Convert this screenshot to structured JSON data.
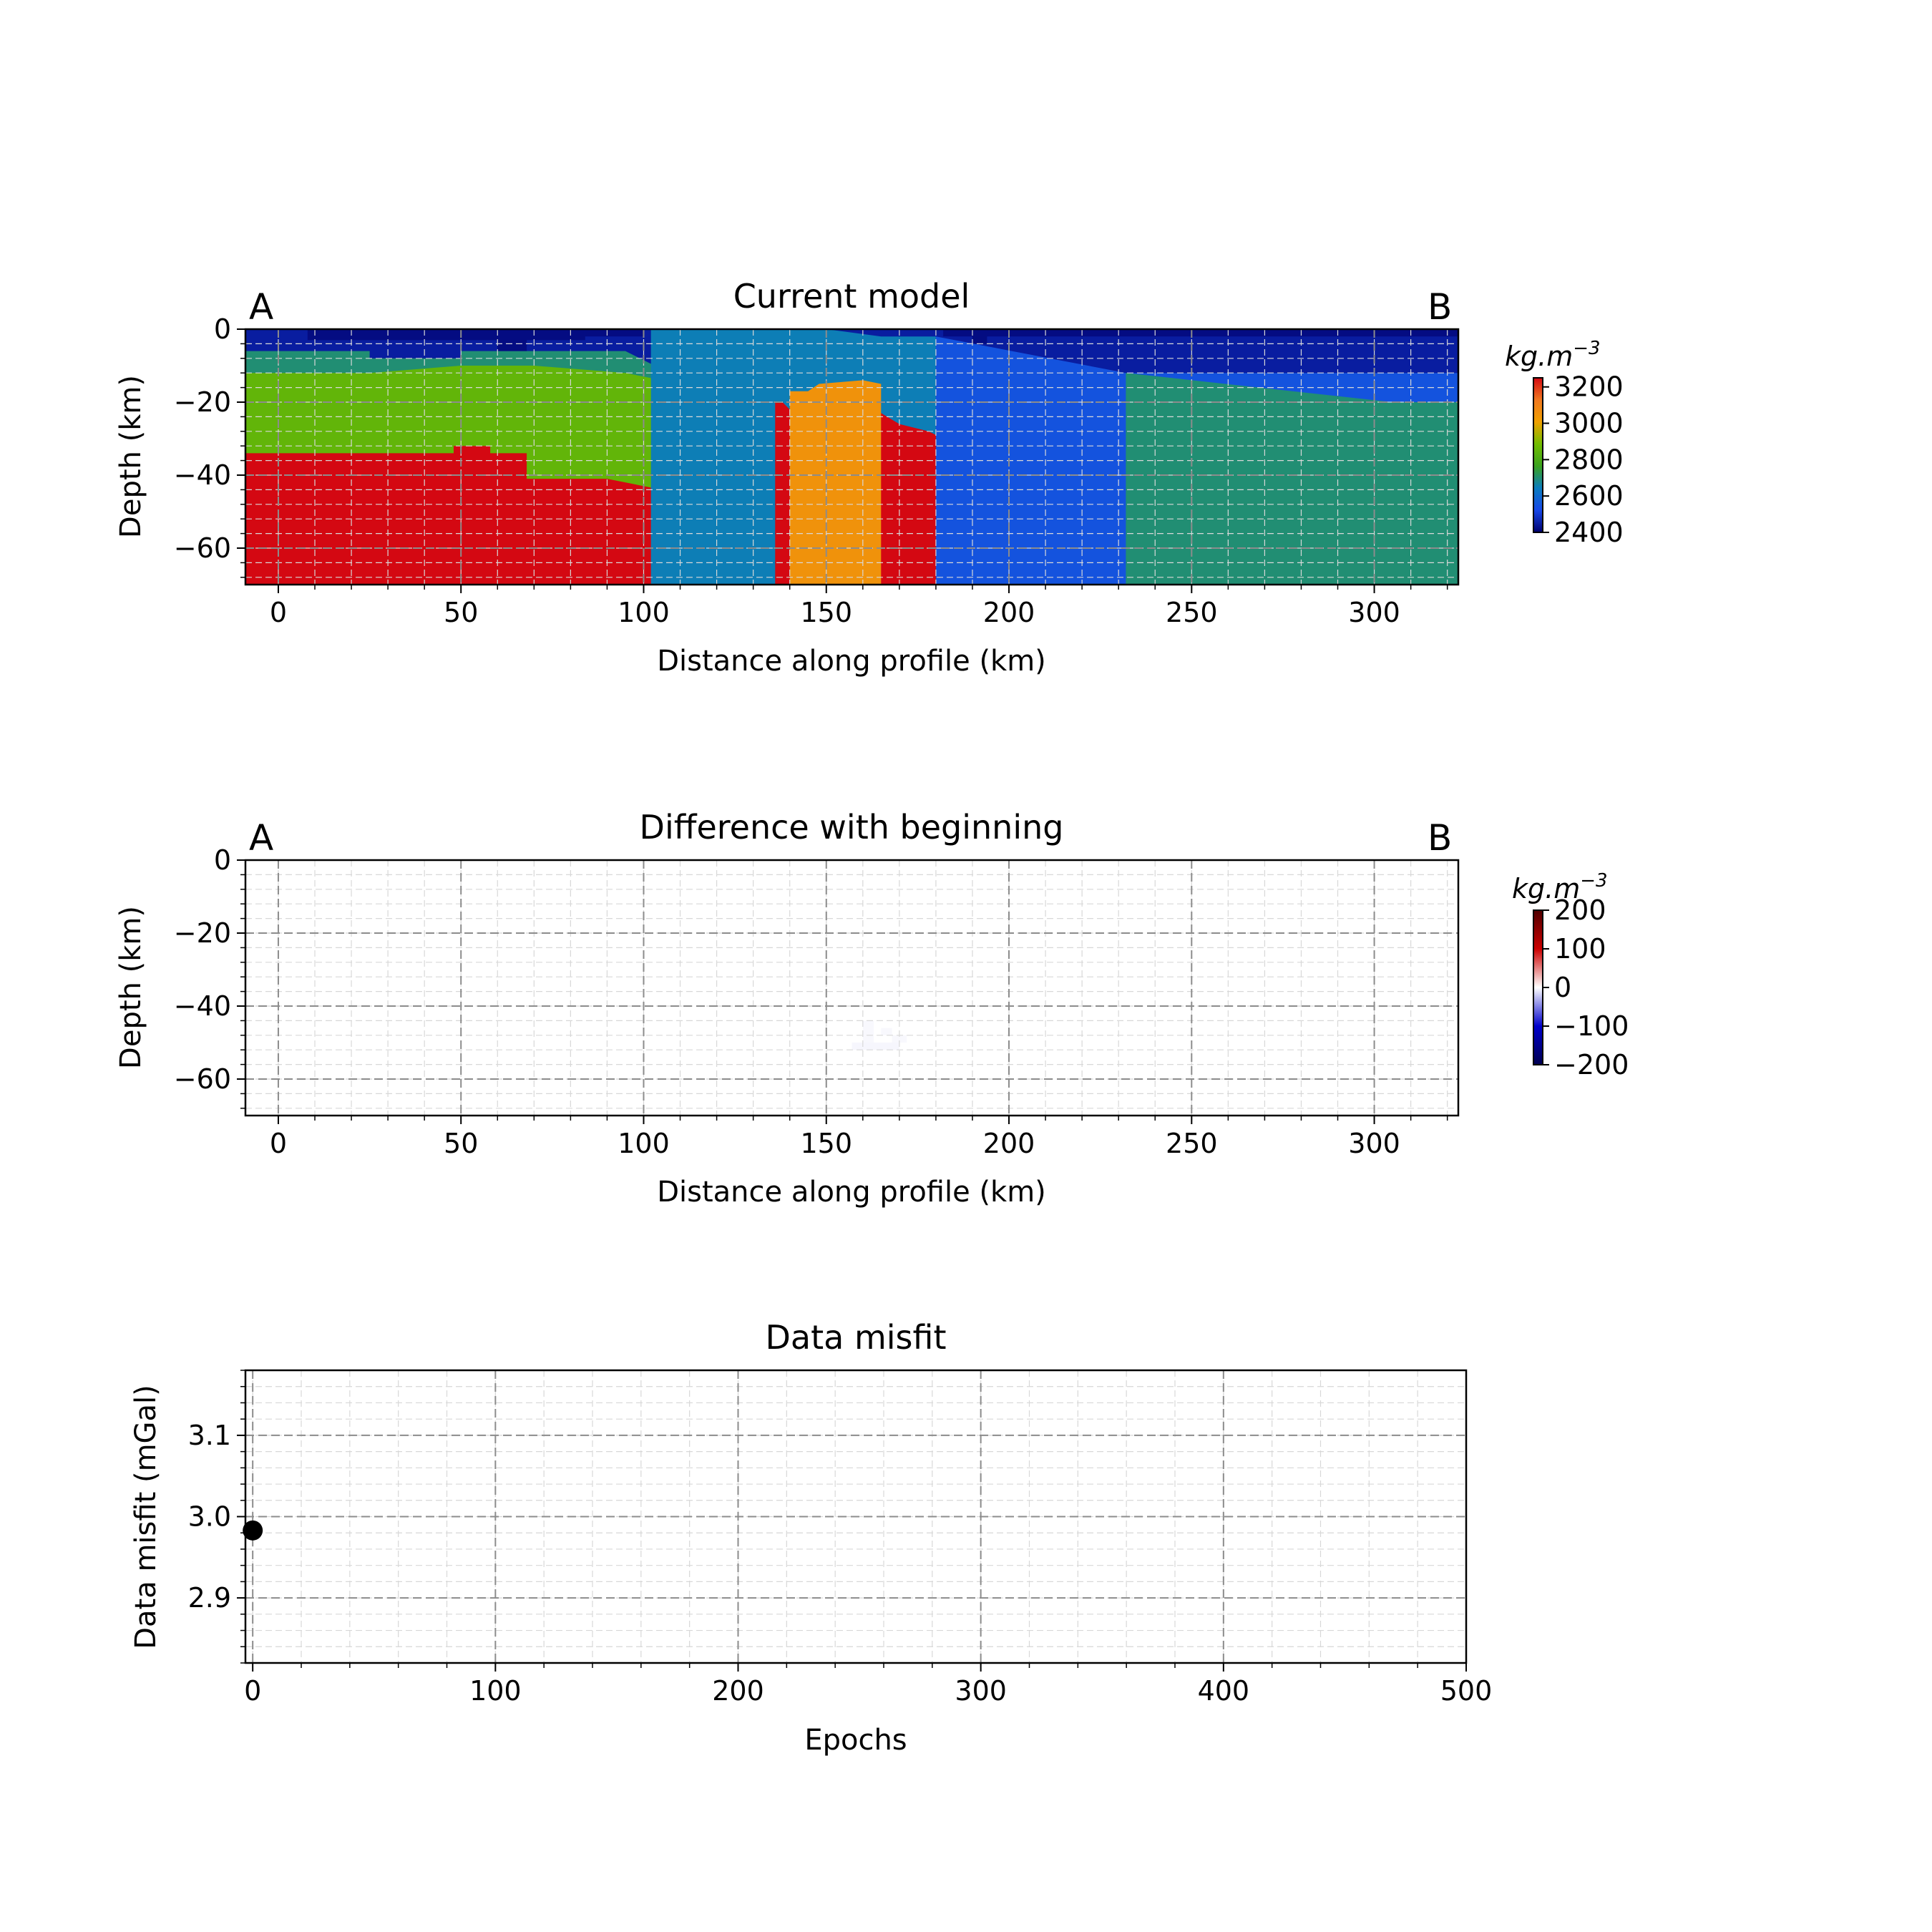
{
  "chart_data": [
    {
      "type": "heatmap",
      "title": "Current model",
      "xlabel": "Distance along profile (km)",
      "ylabel": "Depth (km)",
      "xlim": [
        -9,
        323
      ],
      "ylim": [
        -70,
        0
      ],
      "xticks": [
        0,
        50,
        100,
        150,
        200,
        250,
        300
      ],
      "yticks": [
        0,
        -20,
        -40,
        -60
      ],
      "grid": true,
      "profile_start_label": "A",
      "profile_end_label": "B",
      "colorbar": {
        "unit": "kg.m",
        "unit_exponent": "−3",
        "range": [
          2400,
          3250
        ],
        "ticks": [
          3200,
          3000,
          2800,
          2600,
          2400
        ],
        "colors": [
          "#00006e",
          "#1747e8",
          "#0a7cbf",
          "#3aa21e",
          "#72bd00",
          "#f0a000",
          "#f07820",
          "#d40812"
        ]
      },
      "layers": [
        {
          "density": 2550,
          "top": [
            [
              -9,
              0
            ],
            [
              323,
              0
            ]
          ]
        },
        {
          "density": 2650,
          "top": [
            [
              -9,
              0
            ],
            [
              323,
              0
            ]
          ]
        },
        {
          "density": 2450,
          "top": [
            [
              -9,
              0
            ],
            [
              323,
              0
            ]
          ]
        },
        {
          "density": 2700,
          "top": [
            [
              -9,
              -6
            ],
            [
              25,
              -6
            ],
            [
              25,
              -8
            ],
            [
              50,
              -8
            ],
            [
              50,
              -6
            ],
            [
              70,
              -6
            ],
            [
              95,
              -6
            ],
            [
              103,
              -10
            ],
            [
              123,
              -20
            ],
            [
              130,
              -28
            ],
            [
              135,
              -30
            ],
            [
              138,
              -32
            ],
            [
              143,
              -30
            ],
            [
              150,
              -35
            ],
            [
              163,
              -35
            ],
            [
              170,
              -38
            ],
            [
              180,
              -40
            ],
            [
              200,
              -40
            ],
            [
              205,
              -40
            ],
            [
              323,
              -40
            ]
          ]
        },
        {
          "density": 2850,
          "top": [
            [
              -9,
              -12
            ],
            [
              25,
              -12
            ],
            [
              50,
              -10
            ],
            [
              70,
              -10
            ],
            [
              95,
              -12
            ],
            [
              105,
              -14
            ],
            [
              118,
              -20
            ],
            [
              128,
              -30
            ],
            [
              135,
              -34
            ],
            [
              140,
              -38
            ],
            [
              148,
              -42
            ],
            [
              158,
              -43
            ],
            [
              165,
              -45
            ],
            [
              172,
              -46
            ],
            [
              178,
              -48
            ],
            [
              323,
              -48
            ]
          ]
        },
        {
          "density": 3250,
          "top": [
            [
              -9,
              -34
            ],
            [
              48,
              -34
            ],
            [
              48,
              -32
            ],
            [
              58,
              -32
            ],
            [
              58,
              -34
            ],
            [
              68,
              -34
            ],
            [
              68,
              -41
            ],
            [
              90,
              -41
            ],
            [
              105,
              -44
            ],
            [
              113,
              -44
            ],
            [
              118,
              -46
            ],
            [
              132,
              -48
            ],
            [
              140,
              -52
            ],
            [
              150,
              -53
            ],
            [
              165,
              -53
            ],
            [
              178,
              -53
            ],
            [
              178,
              -53
            ]
          ]
        },
        {
          "density": 2650,
          "top": [
            [
              102,
              0
            ],
            [
              150,
              0
            ],
            [
              165,
              -2
            ],
            [
              180,
              -2
            ]
          ]
        },
        {
          "density": 3250,
          "top": [
            [
              136,
              -20
            ],
            [
              138,
              -20
            ],
            [
              140,
              -22
            ],
            [
              150,
              -22
            ],
            [
              155,
              -23
            ],
            [
              165,
              -23
            ],
            [
              170,
              -26
            ],
            [
              178,
              -28
            ],
            [
              182,
              -30
            ],
            [
              195,
              -30
            ],
            [
              205,
              -31
            ],
            [
              250,
              -31
            ],
            [
              265,
              -32
            ],
            [
              285,
              -32
            ],
            [
              285,
              -34
            ],
            [
              323,
              -34
            ]
          ]
        },
        {
          "density": 3050,
          "top": [
            [
              140,
              -17
            ],
            [
              145,
              -17
            ],
            [
              148,
              -15
            ],
            [
              160,
              -14
            ],
            [
              165,
              -15
            ]
          ]
        },
        {
          "density": 2550,
          "top": [
            [
              180,
              -2
            ],
            [
              232,
              -12
            ],
            [
              323,
              -12
            ]
          ]
        },
        {
          "density": 2700,
          "top": [
            [
              232,
              -12
            ],
            [
              305,
              -20
            ],
            [
              323,
              -20
            ]
          ]
        }
      ]
    },
    {
      "type": "heatmap",
      "title": "Difference with beginning",
      "xlabel": "Distance along profile (km)",
      "ylabel": "Depth (km)",
      "xlim": [
        -9,
        323
      ],
      "ylim": [
        -70,
        0
      ],
      "xticks": [
        0,
        50,
        100,
        150,
        200,
        250,
        300
      ],
      "yticks": [
        0,
        -20,
        -40,
        -60
      ],
      "grid": true,
      "profile_start_label": "A",
      "profile_end_label": "B",
      "colorbar": {
        "unit": "kg.m",
        "unit_exponent": "−3",
        "range": [
          -200,
          200
        ],
        "ticks": [
          200,
          100,
          0,
          -100,
          -200
        ],
        "colors": [
          "#000050",
          "#0000cc",
          "#ffffff",
          "#cc0000",
          "#500000"
        ]
      },
      "anomalies": [
        {
          "x": [
            157,
            170
          ],
          "y": [
            -52,
            -50
          ],
          "value": -4
        },
        {
          "x": [
            160,
            163
          ],
          "y": [
            -50,
            -44
          ],
          "value": -3
        },
        {
          "x": [
            165,
            168
          ],
          "y": [
            -48,
            -46
          ],
          "value": -3
        },
        {
          "x": [
            168,
            172
          ],
          "y": [
            -50,
            -48
          ],
          "value": -3
        }
      ]
    },
    {
      "type": "scatter",
      "title": "Data misfit",
      "xlabel": "Epochs",
      "ylabel": "Data misfit (mGal)",
      "xlim": [
        -3,
        500
      ],
      "ylim": [
        2.82,
        3.18
      ],
      "xticks": [
        0,
        100,
        200,
        300,
        400,
        500
      ],
      "yticks": [
        3.1,
        3.0,
        2.9
      ],
      "grid": true,
      "points": [
        {
          "x": 0,
          "y": 2.983
        }
      ]
    }
  ]
}
